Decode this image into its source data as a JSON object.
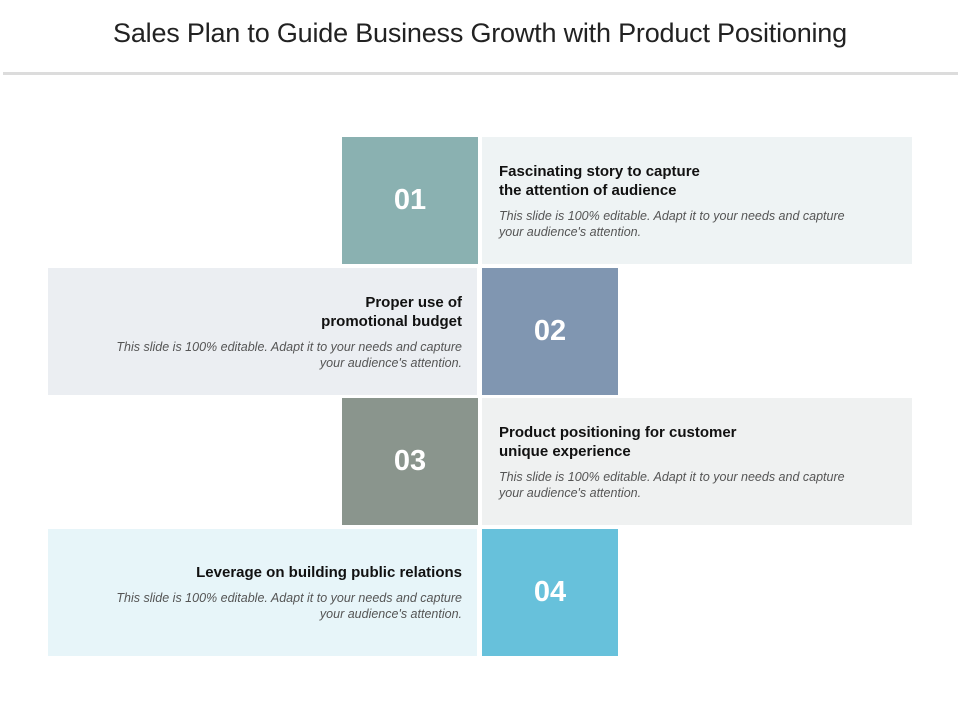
{
  "title": "Sales Plan to Guide Business Growth with Product Positioning",
  "colors": {
    "step1_number": "#8ab1b1",
    "step1_panel": "#eef3f4",
    "step2_number": "#8096b1",
    "step2_panel": "#ebeef2",
    "step3_number": "#8a958d",
    "step3_panel": "#eff1f1",
    "step4_number": "#67c1db",
    "step4_panel": "#e7f5f9",
    "title_rule": "#dcdcdc"
  },
  "steps": [
    {
      "number": "01",
      "heading": "Fascinating story to capture\nthe attention of audience",
      "description": "This slide is 100% editable. Adapt it to your needs and capture\nyour audience's attention."
    },
    {
      "number": "02",
      "heading": "Proper use of\npromotional budget",
      "description": "This slide is 100% editable. Adapt it to your needs and capture\nyour audience's attention."
    },
    {
      "number": "03",
      "heading": "Product positioning for customer\nunique experience",
      "description": "This slide is 100% editable. Adapt it to your needs and capture\nyour audience's attention."
    },
    {
      "number": "04",
      "heading": "Leverage on building public relations",
      "description": "This slide is 100% editable. Adapt it to your needs and capture\nyour audience's attention."
    }
  ]
}
